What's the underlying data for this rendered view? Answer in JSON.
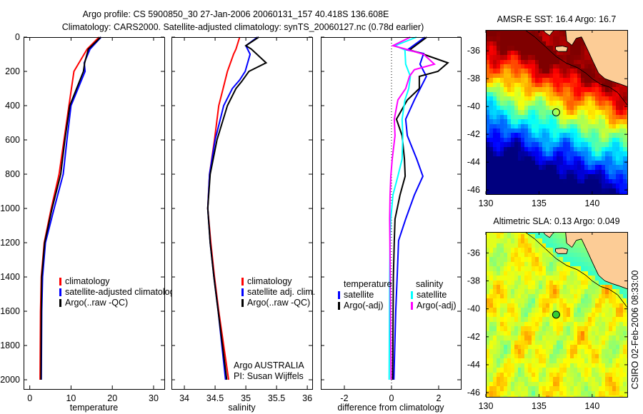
{
  "figure": {
    "title_line1": "Argo profile: CS 5900850_30 27-Jan-2006 20060131_157 40.418S 136.608E",
    "title_line2": "Climatology: CARS2000. Satellite-adjusted climatology: synTS_20060127.nc (0.78d earlier)",
    "side_stamp": "CSIRO 02-Feb-2006 08:33:00"
  },
  "chart_data": [
    {
      "type": "line",
      "xlabel": "temperature",
      "ylabel": "",
      "xlim": [
        -1.5,
        32.6
      ],
      "ylim": [
        2054,
        0
      ],
      "xticks": [
        0,
        10,
        20,
        30
      ],
      "yticks": [
        0,
        200,
        400,
        600,
        800,
        1000,
        1200,
        1400,
        1600,
        1800,
        2000
      ],
      "legend": [
        "climatology",
        "satellite-adjusted climatology",
        "Argo(..raw -QC)"
      ],
      "series": [
        {
          "name": "climatology",
          "color": "#ff0000",
          "depth": [
            0,
            70,
            200,
            400,
            600,
            800,
            1000,
            1200,
            1400,
            1600,
            2000
          ],
          "values": [
            16.8,
            13.9,
            10.7,
            9.5,
            8.3,
            7.1,
            5.2,
            3.5,
            2.8,
            2.6,
            2.5
          ]
        },
        {
          "name": "satellite-adjusted climatology",
          "color": "#0000ff",
          "depth": [
            0,
            70,
            150,
            200,
            400,
            600,
            800,
            1000,
            1200,
            1400,
            1600,
            2000
          ],
          "values": [
            17.3,
            14.6,
            13.2,
            13.4,
            10.0,
            9.0,
            8.1,
            5.9,
            3.8,
            3.1,
            2.9,
            2.8
          ]
        },
        {
          "name": "Argo(..raw -QC)",
          "color": "#000000",
          "depth": [
            0,
            70,
            150,
            200,
            400,
            600,
            800,
            1000,
            1200,
            1400,
            1600,
            2000
          ],
          "values": [
            17.2,
            14.2,
            13.3,
            13.0,
            9.7,
            8.5,
            7.5,
            5.4,
            3.6,
            2.9,
            2.8,
            2.7
          ]
        }
      ]
    },
    {
      "type": "line",
      "xlabel": "salinity",
      "xlim": [
        33.79,
        36.08
      ],
      "ylim": [
        2054,
        0
      ],
      "xticks": [
        34,
        34.5,
        35,
        35.5,
        36
      ],
      "yticks": [
        0,
        200,
        400,
        600,
        800,
        1000,
        1200,
        1400,
        1600,
        1800,
        2000
      ],
      "legend": [
        "climatology",
        "satellite adj. clim.",
        "Argo(..raw -QC)"
      ],
      "annotation": [
        "Argo AUSTRALIA",
        "PI: Susan Wijffels"
      ],
      "series": [
        {
          "name": "climatology",
          "color": "#ff0000",
          "depth": [
            0,
            70,
            100,
            200,
            300,
            400,
            600,
            800,
            1000,
            1200,
            1400,
            1600,
            2000
          ],
          "values": [
            34.9,
            34.84,
            34.8,
            34.7,
            34.63,
            34.56,
            34.49,
            34.41,
            34.38,
            34.43,
            34.49,
            34.56,
            34.72
          ]
        },
        {
          "name": "satellite adj. clim.",
          "color": "#0000ff",
          "depth": [
            0,
            50,
            100,
            200,
            250,
            300,
            400,
            600,
            800,
            1000,
            1200,
            1400,
            1600,
            2000
          ],
          "values": [
            35.19,
            35.0,
            35.07,
            34.99,
            34.9,
            34.78,
            34.64,
            34.5,
            34.41,
            34.38,
            34.42,
            34.48,
            34.55,
            34.67
          ]
        },
        {
          "name": "Argo(..raw -QC)",
          "color": "#000000",
          "depth": [
            0,
            50,
            70,
            150,
            200,
            260,
            300,
            400,
            600,
            800,
            1000,
            1200,
            1400,
            1600,
            2000
          ],
          "values": [
            35.21,
            35.0,
            35.09,
            35.33,
            35.05,
            34.93,
            34.84,
            34.7,
            34.53,
            34.42,
            34.38,
            34.42,
            34.48,
            34.55,
            34.69
          ]
        }
      ]
    },
    {
      "type": "line",
      "xlabel": "difference from climatology",
      "xlim": [
        -3.0,
        2.94
      ],
      "ylim": [
        2054,
        0
      ],
      "xticks": [
        -2,
        0,
        2
      ],
      "yticks": [
        0,
        200,
        400,
        600,
        800,
        1000,
        1200,
        1400,
        1600,
        1800,
        2000
      ],
      "legend_headers": [
        "temperature",
        "salinity"
      ],
      "legend": [
        "satellite",
        "Argo(-adj)",
        "satellite",
        "Argo(-adj)"
      ],
      "series": [
        {
          "name": "temperature satellite",
          "color": "#0000ff",
          "depth": [
            0,
            75,
            96,
            158,
            229,
            367,
            479,
            575,
            712,
            812,
            921,
            1062,
            1187,
            1400,
            1600,
            2000
          ],
          "values": [
            1.42,
            0.67,
            1.36,
            1.21,
            1.48,
            0.97,
            0.6,
            0.67,
            1.07,
            1.33,
            0.97,
            0.6,
            0.3,
            0.24,
            0.18,
            0.1
          ]
        },
        {
          "name": "temperature Argo(-adj)",
          "color": "#000000",
          "depth": [
            0,
            75,
            96,
            150,
            200,
            229,
            300,
            367,
            479,
            575,
            712,
            812,
            921,
            1062,
            1187,
            1400,
            2000
          ],
          "values": [
            1.5,
            0.77,
            1.27,
            2.39,
            1.97,
            1.18,
            1.18,
            0.67,
            0.21,
            0.45,
            0.55,
            0.58,
            0.36,
            0.15,
            0.12,
            0.08,
            0.05
          ]
        },
        {
          "name": "salinity satellite",
          "color": "#00ffff",
          "depth": [
            0,
            50,
            75,
            158,
            229,
            300,
            367,
            479,
            575,
            712,
            812,
            921,
            1062,
            1187,
            1400,
            2000
          ],
          "values": [
            1.06,
            0.15,
            0.57,
            0.6,
            0.8,
            0.73,
            0.57,
            0.45,
            0.48,
            0.45,
            0.27,
            0.06,
            -0.03,
            -0.06,
            -0.08,
            -0.1
          ]
        },
        {
          "name": "salinity Argo(-adj)",
          "color": "#ff00ff",
          "depth": [
            0,
            50,
            75,
            100,
            158,
            190,
            229,
            300,
            367,
            479,
            575,
            712,
            812,
            921,
            1062,
            1400,
            2000
          ],
          "values": [
            0.8,
            0.06,
            0.73,
            1.36,
            1.82,
            0.97,
            0.76,
            0.6,
            0.27,
            0.12,
            0.15,
            0.03,
            -0.03,
            -0.06,
            -0.08,
            -0.05,
            -0.02
          ]
        }
      ]
    },
    {
      "type": "heatmap",
      "title": "AMSR-E SST: 16.4  Argo: 16.7",
      "xlim": [
        130,
        143.3
      ],
      "ylim": [
        -46.3,
        -34.5
      ],
      "xticks": [
        130,
        135,
        140
      ],
      "yticks": [
        -36,
        -38,
        -40,
        -42,
        -44,
        -46
      ],
      "argo_point": {
        "lon": 136.608,
        "lat": -40.418
      }
    },
    {
      "type": "heatmap",
      "title": "Altimetric SLA: 0.13  Argo: 0.049",
      "xlim": [
        130,
        143.3
      ],
      "ylim": [
        -46.3,
        -34.5
      ],
      "xticks": [
        130,
        135,
        140
      ],
      "yticks": [
        -36,
        -38,
        -40,
        -42,
        -44,
        -46
      ],
      "argo_point": {
        "lon": 136.608,
        "lat": -40.418
      }
    }
  ]
}
